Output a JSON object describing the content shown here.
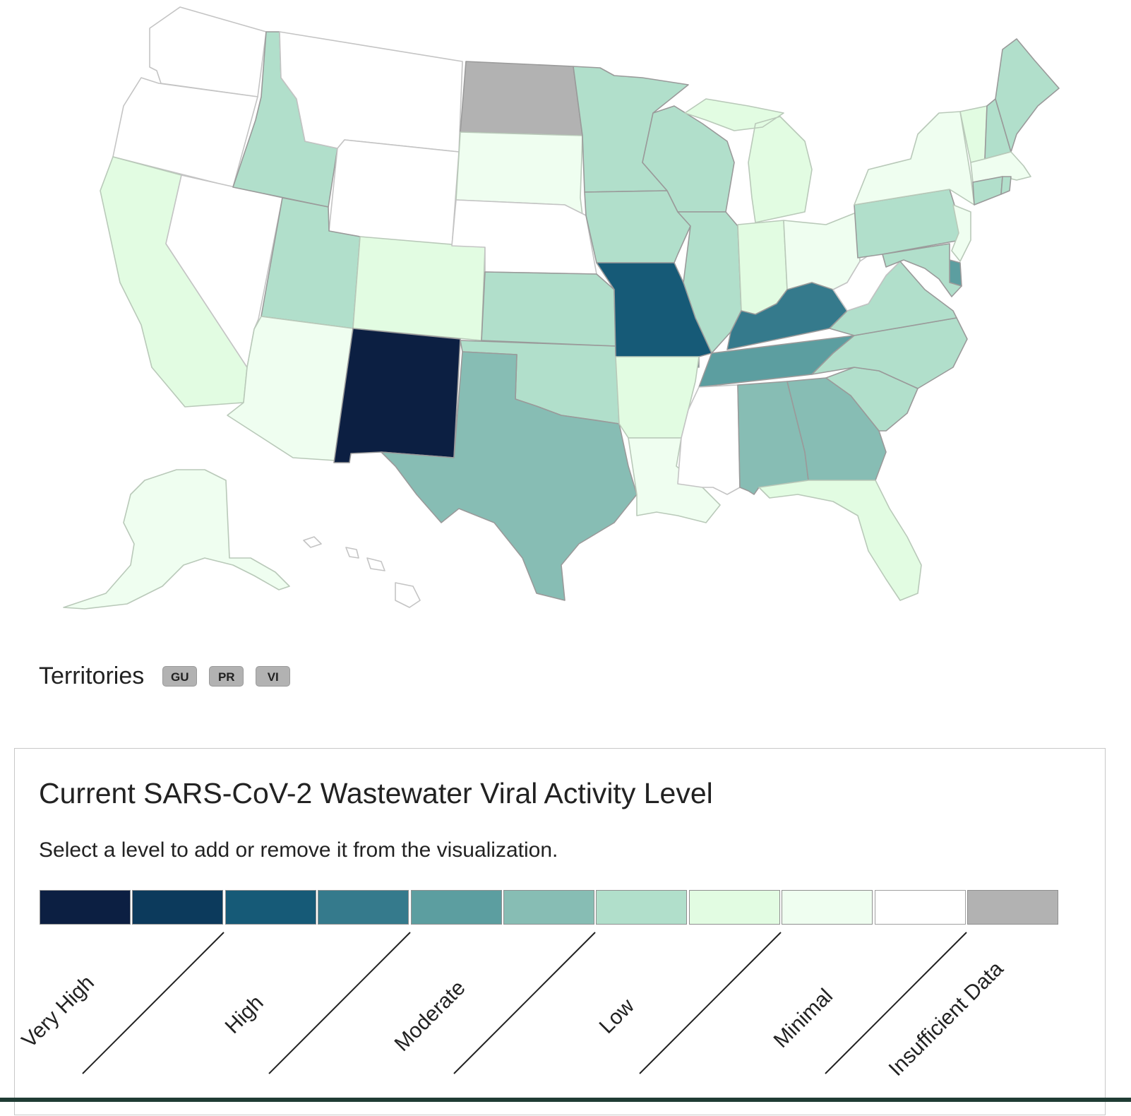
{
  "map": {
    "colors": {
      "very_high": "#0c1f42",
      "high_1": "#0c3a5c",
      "high_2": "#165a77",
      "high_3": "#357a8c",
      "moderate_1": "#5c9ea0",
      "moderate_2": "#87bdb4",
      "low_1": "#b1dfcb",
      "low_2": "#e2fce2",
      "minimal": "#effef0",
      "none": "#ffffff",
      "insufficient": "#b2b2b2"
    },
    "states": [
      {
        "name": "WA",
        "level": "none"
      },
      {
        "name": "OR",
        "level": "none"
      },
      {
        "name": "CA",
        "level": "low_2"
      },
      {
        "name": "NV",
        "level": "none"
      },
      {
        "name": "ID",
        "level": "low_1"
      },
      {
        "name": "MT",
        "level": "none"
      },
      {
        "name": "WY",
        "level": "none"
      },
      {
        "name": "UT",
        "level": "low_1"
      },
      {
        "name": "AZ",
        "level": "minimal"
      },
      {
        "name": "CO",
        "level": "low_2"
      },
      {
        "name": "NM",
        "level": "very_high"
      },
      {
        "name": "ND",
        "level": "insufficient"
      },
      {
        "name": "SD",
        "level": "minimal"
      },
      {
        "name": "NE",
        "level": "none"
      },
      {
        "name": "KS",
        "level": "low_1"
      },
      {
        "name": "OK",
        "level": "low_1"
      },
      {
        "name": "TX",
        "level": "moderate_2"
      },
      {
        "name": "MN",
        "level": "low_1"
      },
      {
        "name": "IA",
        "level": "low_1"
      },
      {
        "name": "MO",
        "level": "high_2"
      },
      {
        "name": "AR",
        "level": "low_2"
      },
      {
        "name": "LA",
        "level": "minimal"
      },
      {
        "name": "WI",
        "level": "low_1"
      },
      {
        "name": "IL",
        "level": "low_1"
      },
      {
        "name": "MI",
        "level": "low_2"
      },
      {
        "name": "IN",
        "level": "low_2"
      },
      {
        "name": "OH",
        "level": "minimal"
      },
      {
        "name": "KY",
        "level": "high_3"
      },
      {
        "name": "TN",
        "level": "moderate_1"
      },
      {
        "name": "MS",
        "level": "none"
      },
      {
        "name": "AL",
        "level": "moderate_2"
      },
      {
        "name": "GA",
        "level": "moderate_2"
      },
      {
        "name": "FL",
        "level": "low_2"
      },
      {
        "name": "SC",
        "level": "low_1"
      },
      {
        "name": "NC",
        "level": "low_1"
      },
      {
        "name": "VA",
        "level": "low_1"
      },
      {
        "name": "WV",
        "level": "none"
      },
      {
        "name": "PA",
        "level": "low_1"
      },
      {
        "name": "NY",
        "level": "minimal"
      },
      {
        "name": "VT",
        "level": "low_2"
      },
      {
        "name": "NH",
        "level": "low_1"
      },
      {
        "name": "ME",
        "level": "low_1"
      },
      {
        "name": "MA",
        "level": "minimal"
      },
      {
        "name": "CT",
        "level": "low_1"
      },
      {
        "name": "RI",
        "level": "low_1"
      },
      {
        "name": "NJ",
        "level": "minimal"
      },
      {
        "name": "DE",
        "level": "moderate_1"
      },
      {
        "name": "MD",
        "level": "low_1"
      },
      {
        "name": "AK",
        "level": "minimal"
      },
      {
        "name": "HI",
        "level": "none"
      }
    ]
  },
  "territories": {
    "label": "Territories",
    "items": [
      "GU",
      "PR",
      "VI"
    ]
  },
  "legend": {
    "title": "Current SARS-CoV-2 Wastewater Viral Activity Level",
    "subtitle": "Select a level to add or remove it from the visualization.",
    "swatches": [
      "#0c1f42",
      "#0c3a5c",
      "#165a77",
      "#357a8c",
      "#5c9ea0",
      "#87bdb4",
      "#b1dfcb",
      "#e2fce2",
      "#effef0",
      "#ffffff",
      "#b2b2b2"
    ],
    "levels": [
      "Very High",
      "High",
      "Moderate",
      "Low",
      "Minimal",
      "Insufficient Data"
    ]
  }
}
